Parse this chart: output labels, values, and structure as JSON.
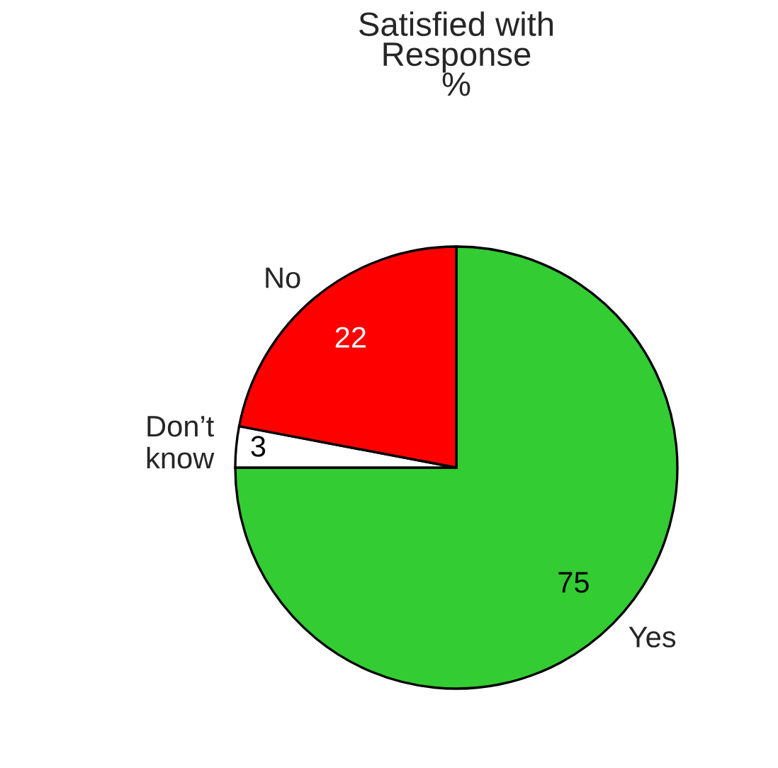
{
  "chart_data": {
    "type": "pie",
    "title": "Satisfied with\nResponse\n%",
    "categories": [
      "Yes",
      "Don’t\nknow",
      "No"
    ],
    "values": [
      75,
      3,
      22
    ],
    "colors": [
      "#33cc33",
      "#ffffff",
      "#ff0000"
    ],
    "data_labels": true,
    "legend": false
  }
}
